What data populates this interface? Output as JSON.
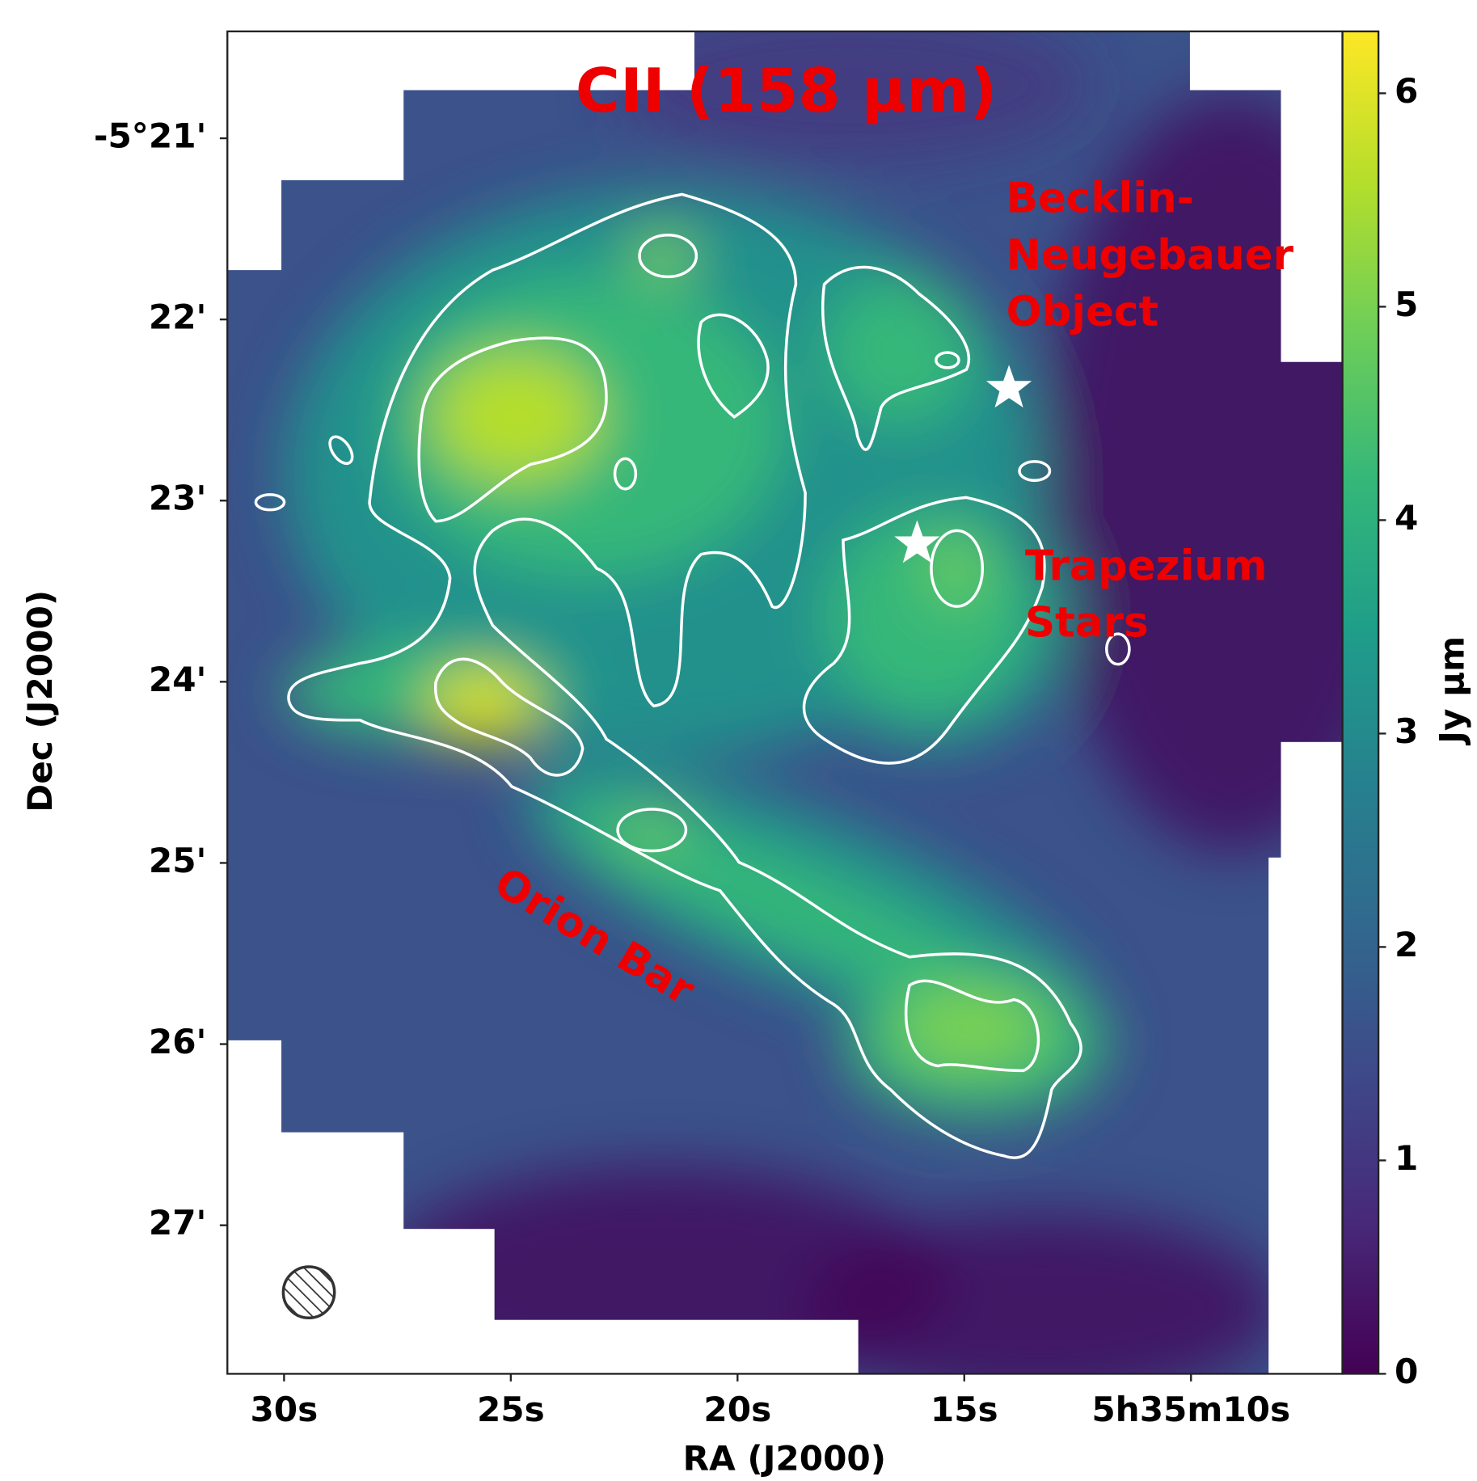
{
  "chart_data": {
    "type": "image",
    "title": "CII (158 μm)",
    "xlabel": "RA (J2000)",
    "ylabel": "Dec (J2000)",
    "colorbar_label": "Jy μm",
    "colormap": "viridis",
    "contour_color": "#ffffff",
    "annotation_color": "#ee0000",
    "xlim": [
      31.25,
      6.66
    ],
    "xticks": [
      {
        "value": 30,
        "label": "30s"
      },
      {
        "value": 25,
        "label": "25s"
      },
      {
        "value": 20,
        "label": "20s"
      },
      {
        "value": 15,
        "label": "15s"
      },
      {
        "value": 10,
        "label": "5h35m10s"
      }
    ],
    "ylim": [
      20.41,
      27.82
    ],
    "yticks": [
      {
        "value": 21,
        "label": "-5°21'"
      },
      {
        "value": 22,
        "label": "22'"
      },
      {
        "value": 23,
        "label": "23'"
      },
      {
        "value": 24,
        "label": "24'"
      },
      {
        "value": 25,
        "label": "25'"
      },
      {
        "value": 26,
        "label": "26'"
      },
      {
        "value": 27,
        "label": "27'"
      }
    ],
    "clim": [
      0,
      6.29
    ],
    "cticks": [
      0,
      1,
      2,
      3,
      4,
      5,
      6
    ],
    "annotations": [
      {
        "lines": [
          "Becklin-",
          "Neugebauer",
          "Object"
        ]
      },
      {
        "lines": [
          "Trapezium",
          "Stars"
        ]
      },
      {
        "lines": [
          "Orion Bar"
        ]
      }
    ]
  }
}
